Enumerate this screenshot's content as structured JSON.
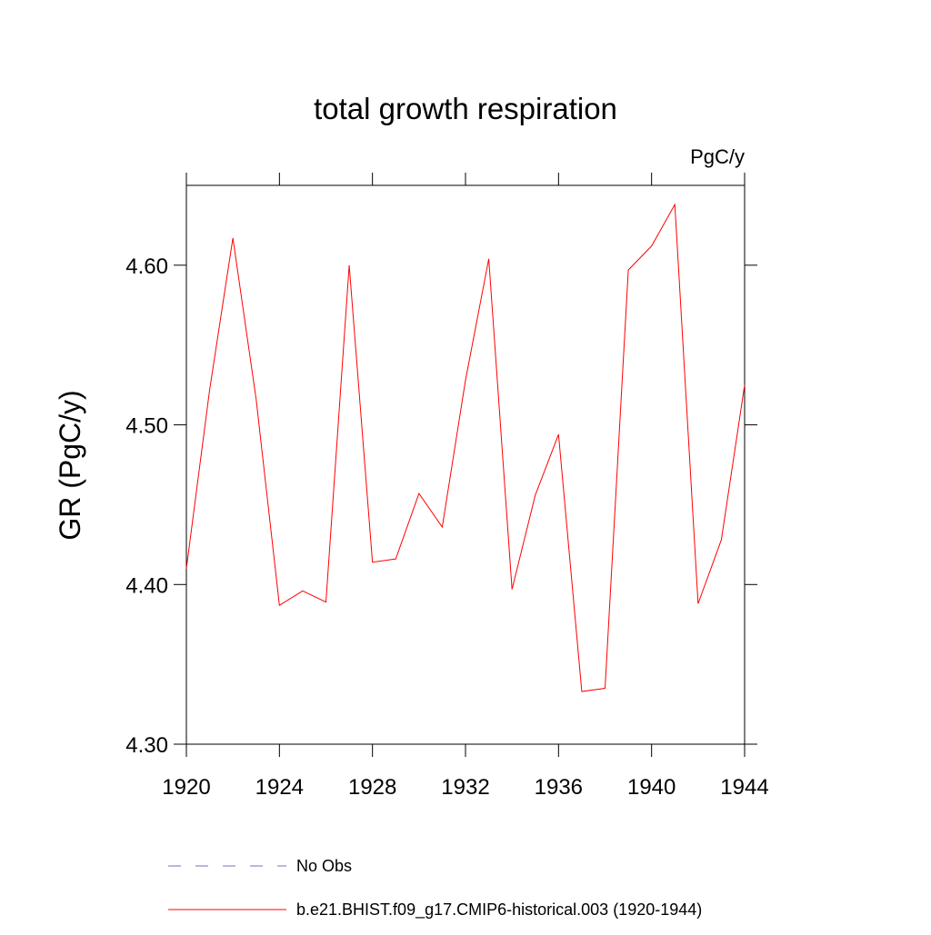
{
  "chart_data": {
    "type": "line",
    "title": "total growth respiration",
    "units_label": "PgC/y",
    "y_label": "GR  (PgC/y)",
    "x": [
      1920,
      1921,
      1922,
      1923,
      1924,
      1925,
      1926,
      1927,
      1928,
      1929,
      1930,
      1931,
      1932,
      1933,
      1934,
      1935,
      1936,
      1937,
      1938,
      1939,
      1940,
      1941,
      1942,
      1943,
      1944
    ],
    "series": [
      {
        "name": "b.e21.BHIST.f09_g17.CMIP6-historical.003 (1920-1944)",
        "color": "#ff0000",
        "values": [
          4.41,
          4.522,
          4.617,
          4.516,
          4.387,
          4.396,
          4.389,
          4.6,
          4.414,
          4.416,
          4.457,
          4.436,
          4.528,
          4.604,
          4.397,
          4.456,
          4.494,
          4.333,
          4.335,
          4.597,
          4.612,
          4.638,
          4.388,
          4.428,
          4.525
        ]
      }
    ],
    "obs_legend": {
      "name": "No Obs",
      "color": "#7070b8",
      "dashed": true
    },
    "xlim": [
      1920,
      1944
    ],
    "xticks": [
      1920,
      1924,
      1928,
      1932,
      1936,
      1940,
      1944
    ],
    "ylim": [
      4.3,
      4.65
    ],
    "yticks": [
      {
        "value": 4.3,
        "label": "4.30"
      },
      {
        "value": 4.4,
        "label": "4.40"
      },
      {
        "value": 4.5,
        "label": "4.50"
      },
      {
        "value": 4.6,
        "label": "4.60"
      }
    ]
  }
}
